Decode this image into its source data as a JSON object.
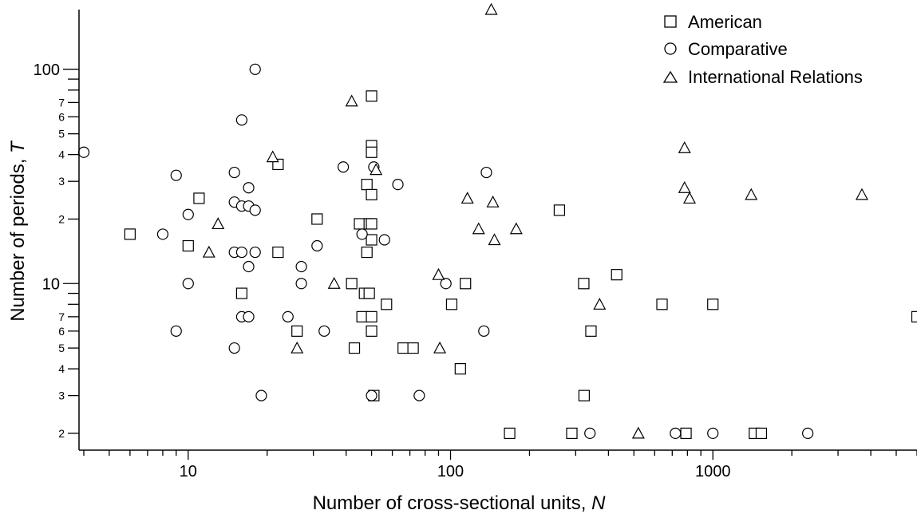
{
  "chart_data": {
    "type": "scatter",
    "x_axis": {
      "label_prefix": "Number of cross-sectional units, ",
      "label_var": "N",
      "scale": "log",
      "range": [
        4,
        6000
      ],
      "major_ticks": [
        10,
        100,
        1000
      ],
      "tick_labels": [
        "10",
        "100",
        "1000"
      ]
    },
    "y_axis": {
      "label_prefix": "Number of periods, ",
      "label_var": "T",
      "scale": "log",
      "range": [
        1.85,
        190
      ],
      "major_ticks": [
        10,
        100
      ],
      "major_tick_labels": [
        "10",
        "100"
      ],
      "minor_labeled_ticks": [
        2,
        3,
        4,
        5,
        6,
        7,
        20,
        30,
        40,
        50,
        60,
        70
      ],
      "minor_tick_labels": [
        "2",
        "3",
        "4",
        "5",
        "6",
        "7",
        "2",
        "3",
        "4",
        "5",
        "6",
        "7"
      ]
    },
    "legend": {
      "placement": "top-right",
      "entries": [
        {
          "label": "American",
          "marker": "square"
        },
        {
          "label": "Comparative",
          "marker": "circle"
        },
        {
          "label": "International Relations",
          "marker": "triangle"
        }
      ]
    },
    "grid": false,
    "series": [
      {
        "name": "American",
        "marker": "square",
        "points": [
          [
            6,
            17
          ],
          [
            10,
            15
          ],
          [
            11,
            25
          ],
          [
            16,
            9
          ],
          [
            22,
            36
          ],
          [
            22,
            14
          ],
          [
            26,
            6
          ],
          [
            31,
            20
          ],
          [
            42,
            10
          ],
          [
            43,
            5
          ],
          [
            45,
            19
          ],
          [
            46,
            7
          ],
          [
            47,
            9
          ],
          [
            48,
            29
          ],
          [
            48,
            14
          ],
          [
            49,
            19
          ],
          [
            49,
            9
          ],
          [
            50,
            75
          ],
          [
            50,
            44
          ],
          [
            50,
            41
          ],
          [
            50,
            26
          ],
          [
            50,
            19
          ],
          [
            50,
            16
          ],
          [
            50,
            7
          ],
          [
            50,
            6
          ],
          [
            51,
            3
          ],
          [
            57,
            8
          ],
          [
            66,
            5
          ],
          [
            72,
            5
          ],
          [
            101,
            8
          ],
          [
            114,
            10
          ],
          [
            109,
            4
          ],
          [
            168,
            2
          ],
          [
            260,
            22
          ],
          [
            290,
            2
          ],
          [
            322,
            10
          ],
          [
            323,
            3
          ],
          [
            343,
            6
          ],
          [
            430,
            11
          ],
          [
            640,
            8
          ],
          [
            790,
            2
          ],
          [
            1000,
            8
          ],
          [
            1440,
            2
          ],
          [
            1530,
            2
          ],
          [
            6000,
            7
          ]
        ]
      },
      {
        "name": "Comparative",
        "marker": "circle",
        "points": [
          [
            4,
            41
          ],
          [
            8,
            17
          ],
          [
            9,
            32
          ],
          [
            9,
            6
          ],
          [
            10,
            21
          ],
          [
            10,
            10
          ],
          [
            15,
            33
          ],
          [
            15,
            24
          ],
          [
            15,
            14
          ],
          [
            15,
            5
          ],
          [
            16,
            58
          ],
          [
            16,
            23
          ],
          [
            16,
            14
          ],
          [
            16,
            7
          ],
          [
            17,
            28
          ],
          [
            17,
            23
          ],
          [
            17,
            12
          ],
          [
            17,
            7
          ],
          [
            18,
            100
          ],
          [
            18,
            22
          ],
          [
            18,
            14
          ],
          [
            19,
            3
          ],
          [
            24,
            7
          ],
          [
            27,
            12
          ],
          [
            27,
            10
          ],
          [
            31,
            15
          ],
          [
            33,
            6
          ],
          [
            39,
            35
          ],
          [
            46,
            17
          ],
          [
            50,
            3
          ],
          [
            51,
            35
          ],
          [
            56,
            16
          ],
          [
            63,
            29
          ],
          [
            76,
            3
          ],
          [
            96,
            10
          ],
          [
            134,
            6
          ],
          [
            137,
            33
          ],
          [
            340,
            2
          ],
          [
            720,
            2
          ],
          [
            1000,
            2
          ],
          [
            2300,
            2
          ]
        ]
      },
      {
        "name": "International Relations",
        "marker": "triangle",
        "points": [
          [
            12,
            14
          ],
          [
            13,
            19
          ],
          [
            21,
            39
          ],
          [
            26,
            5
          ],
          [
            36,
            10
          ],
          [
            42,
            71
          ],
          [
            52,
            34
          ],
          [
            90,
            11
          ],
          [
            91,
            5
          ],
          [
            116,
            25
          ],
          [
            128,
            18
          ],
          [
            143,
            190
          ],
          [
            145,
            24
          ],
          [
            147,
            16
          ],
          [
            178,
            18
          ],
          [
            370,
            8
          ],
          [
            520,
            2
          ],
          [
            780,
            43
          ],
          [
            780,
            28
          ],
          [
            815,
            25
          ],
          [
            1400,
            26
          ],
          [
            3700,
            26
          ]
        ]
      }
    ]
  }
}
